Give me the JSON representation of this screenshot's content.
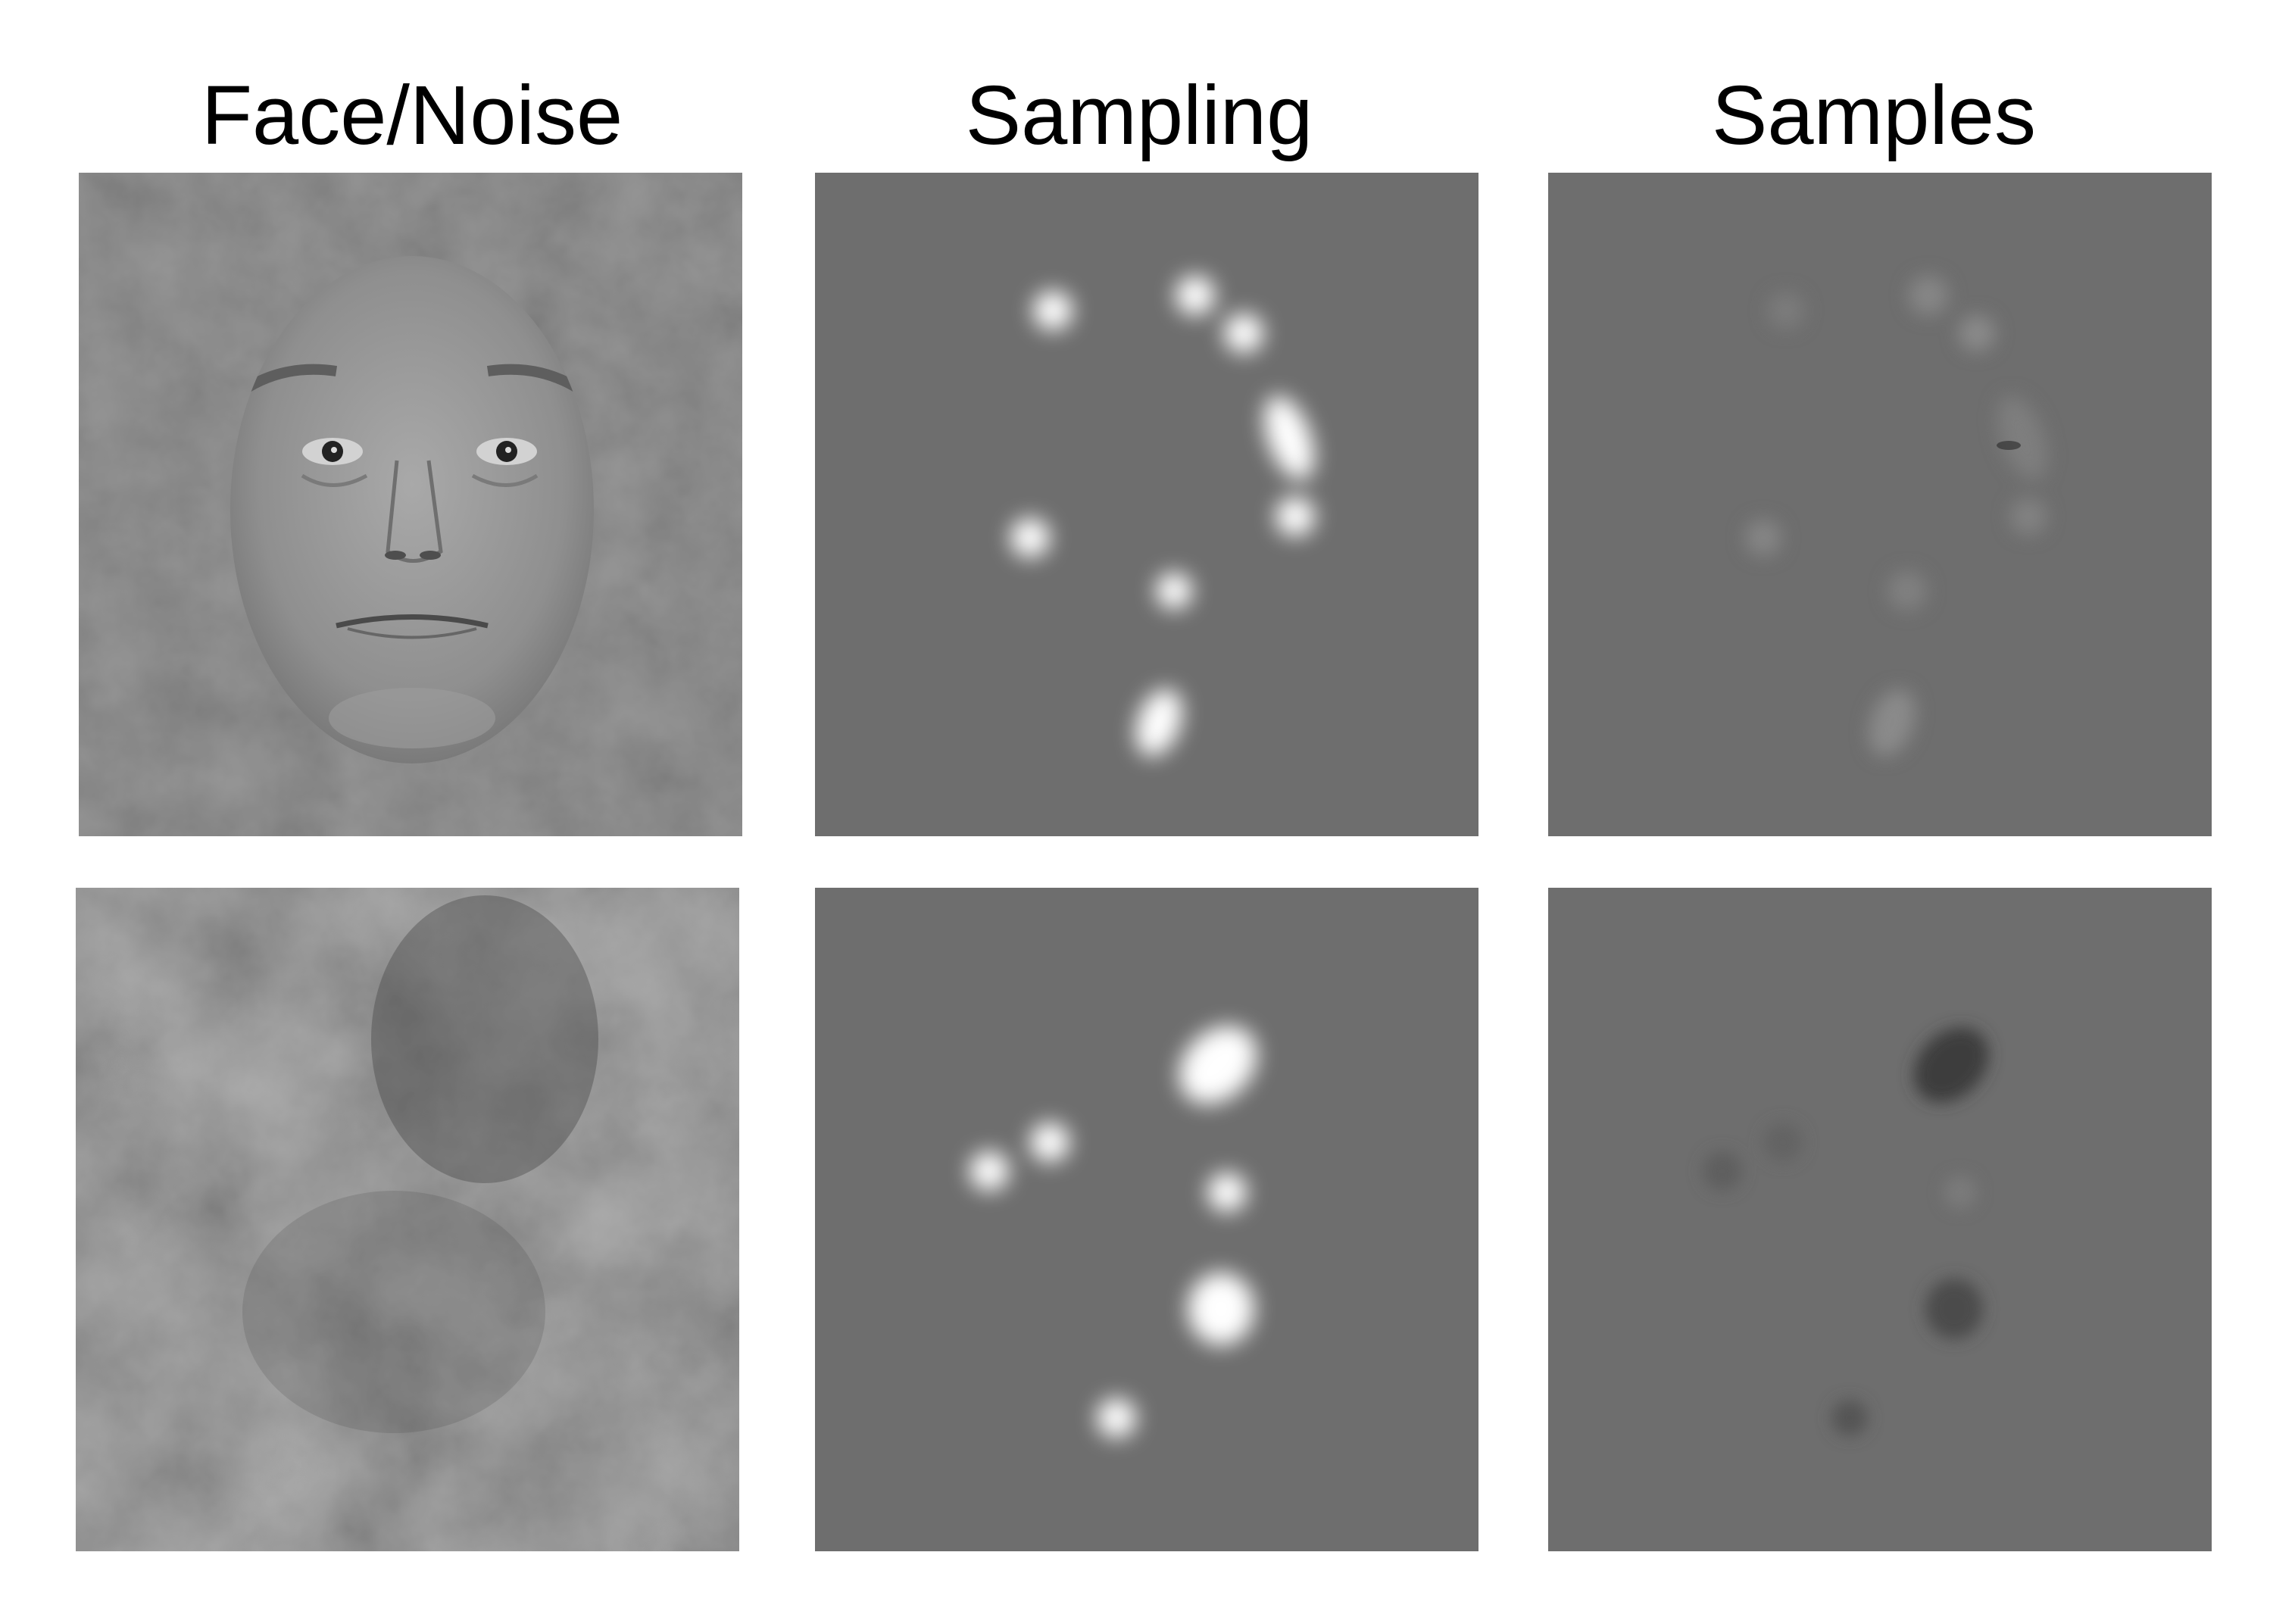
{
  "columns": {
    "face_noise": "Face/Noise",
    "sampling": "Sampling",
    "samples": "Samples"
  },
  "colors": {
    "mid_gray": "#6e6e6e",
    "bubble": "#ffffff"
  },
  "rows": [
    "face",
    "noise"
  ]
}
